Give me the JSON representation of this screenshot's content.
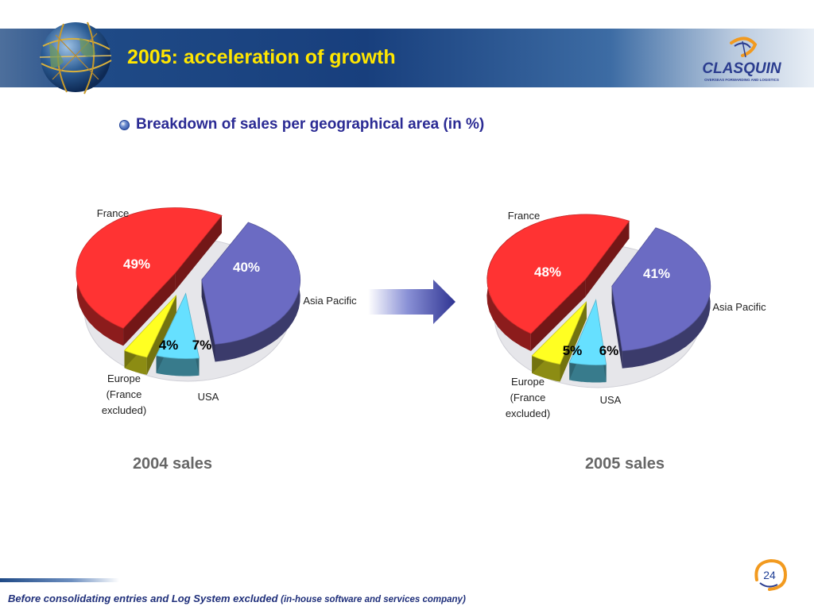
{
  "slide": {
    "title": "2005: acceleration of growth",
    "subtitle": "Breakdown of sales per geographical area (in %)",
    "footer_main": "Before consolidating entries and Log System excluded",
    "footer_paren": "(in-house software and services company)",
    "page_number": "24"
  },
  "logo": {
    "name": "CLASQUIN",
    "tagline": "OVERSEAS FORWARDING AND LOGISTICS"
  },
  "colors": {
    "title": "#ffe600",
    "subtitle": "#2b2b94",
    "france": "#ff3333",
    "asia_pacific": "#6b6bc3",
    "europe": "#ffff22",
    "usa": "#66e0ff",
    "arrow": "#3a3f99"
  },
  "icons": [
    "globe-icon",
    "clasquin-logo",
    "right-arrow-icon",
    "page-badge-icon",
    "bullet-icon"
  ],
  "chart_data": [
    {
      "type": "pie",
      "title": "2004 sales",
      "categories": [
        "France",
        "Asia Pacific",
        "Europe (France excluded)",
        "USA"
      ],
      "values": [
        49,
        40,
        4,
        7
      ],
      "value_labels": [
        "49%",
        "40%",
        "4%",
        "7%"
      ],
      "category_labels": [
        "France",
        "Asia Pacific",
        [
          "Europe",
          "(France",
          "excluded)"
        ],
        "USA"
      ],
      "exploded": true,
      "legend": "none"
    },
    {
      "type": "pie",
      "title": "2005 sales",
      "categories": [
        "France",
        "Asia Pacific",
        "Europe (France excluded)",
        "USA"
      ],
      "values": [
        48,
        41,
        5,
        6
      ],
      "value_labels": [
        "48%",
        "41%",
        "5%",
        "6%"
      ],
      "category_labels": [
        "France",
        "Asia Pacific",
        [
          "Europe",
          "(France",
          "excluded)"
        ],
        "USA"
      ],
      "exploded": true,
      "legend": "none"
    }
  ]
}
